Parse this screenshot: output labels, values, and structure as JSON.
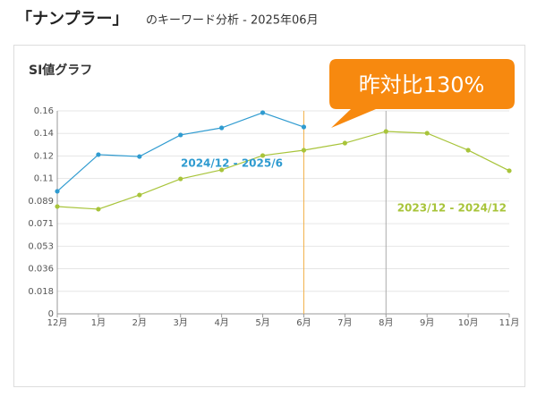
{
  "header": {
    "title": "「ナンプラー」",
    "subtitle": "のキーワード分析 - 2025年06月"
  },
  "chart_data": {
    "type": "line",
    "title": "SI値グラフ",
    "callout": "昨対比130%",
    "categories": [
      "12月",
      "1月",
      "2月",
      "3月",
      "4月",
      "5月",
      "6月",
      "7月",
      "8月",
      "9月",
      "10月",
      "11月"
    ],
    "series": [
      {
        "name": "2024/12 - 2025/6",
        "color": "#2f9bd0",
        "values": [
          0.0966,
          0.1255,
          0.124,
          0.141,
          0.1466,
          0.1586,
          0.1473,
          null,
          null,
          null,
          null,
          null
        ]
      },
      {
        "name": "2023/12 - 2024/12",
        "color": "#a8c43a",
        "values": [
          0.0846,
          0.0825,
          0.0937,
          0.1064,
          0.1135,
          0.1248,
          0.129,
          0.1346,
          0.1438,
          0.1424,
          0.129,
          0.1128
        ]
      }
    ],
    "ylim": [
      0,
      0.16
    ],
    "yticks": [
      0,
      {
        "value": 0.01778,
        "label": "0.018"
      },
      {
        "value": 0.03556,
        "label": "0.036"
      },
      {
        "value": 0.05333,
        "label": "0.053"
      },
      {
        "value": 0.07111,
        "label": "0.071"
      },
      {
        "value": 0.08889,
        "label": "0.089"
      },
      {
        "value": 0.10667,
        "label": "0.11"
      },
      {
        "value": 0.12444,
        "label": "0.12"
      },
      {
        "value": 0.14222,
        "label": "0.14"
      },
      0.16
    ],
    "grid": true
  }
}
